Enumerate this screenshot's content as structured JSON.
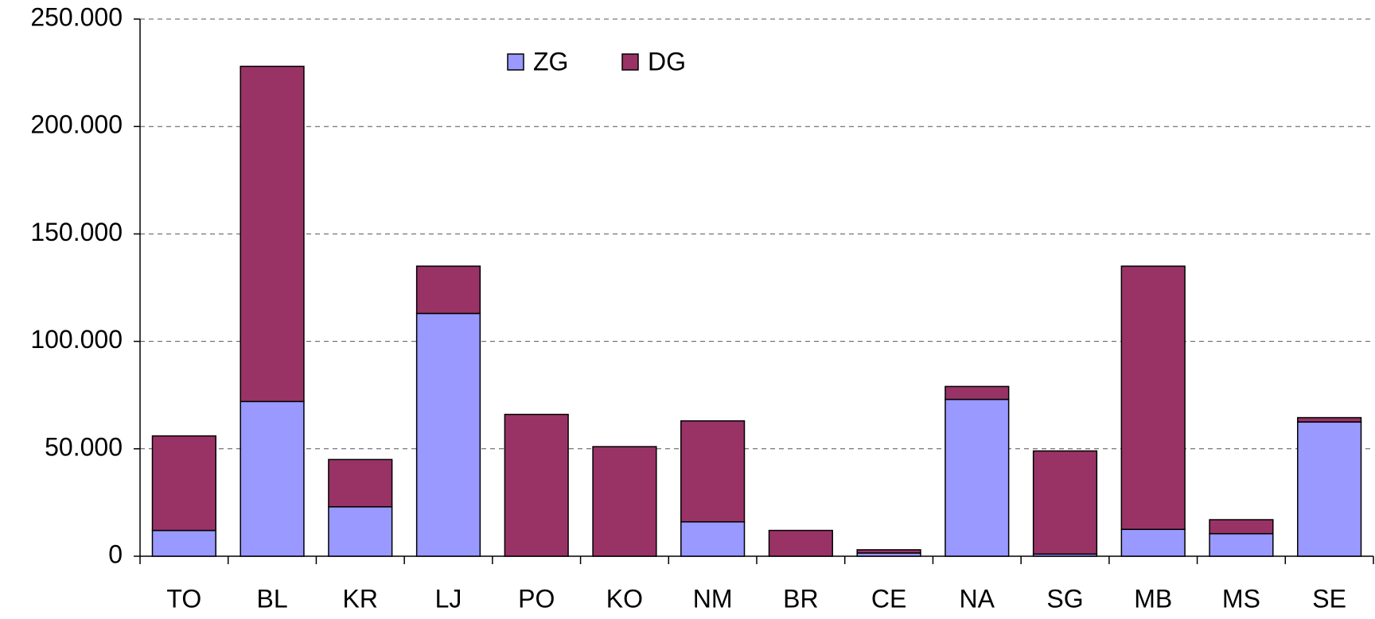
{
  "chart_data": {
    "type": "stacked_bar",
    "categories": [
      "TO",
      "BL",
      "KR",
      "LJ",
      "PO",
      "KO",
      "NM",
      "BR",
      "CE",
      "NA",
      "SG",
      "MB",
      "MS",
      "SE"
    ],
    "series": [
      {
        "name": "ZG",
        "color": "#9999ff",
        "values": [
          12000,
          72000,
          23000,
          113000,
          0,
          0,
          16000,
          0,
          1500,
          73000,
          1000,
          12500,
          10500,
          62500
        ]
      },
      {
        "name": "DG",
        "color": "#993366",
        "values": [
          44000,
          156000,
          22000,
          22000,
          66000,
          51000,
          47000,
          12000,
          1500,
          6000,
          48000,
          122500,
          6500,
          2000
        ]
      }
    ],
    "ylim": [
      0,
      250000
    ],
    "yticks": [
      0,
      {
        "value": 50000,
        "label": "50.000"
      },
      {
        "value": 100000,
        "label": "100.000"
      },
      {
        "value": 150000,
        "label": "150.000"
      },
      {
        "value": 200000,
        "label": "200.000"
      },
      {
        "value": 250000,
        "label": "250.000"
      }
    ],
    "grid": true,
    "legend": "top"
  }
}
